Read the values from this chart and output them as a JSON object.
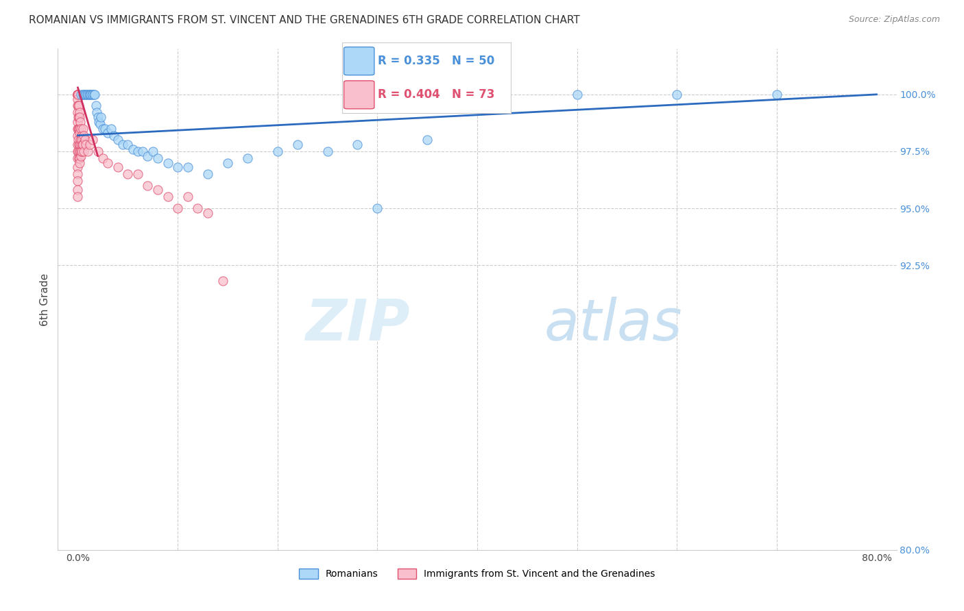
{
  "title": "ROMANIAN VS IMMIGRANTS FROM ST. VINCENT AND THE GRENADINES 6TH GRADE CORRELATION CHART",
  "source": "Source: ZipAtlas.com",
  "ylabel": "6th Grade",
  "xlim_data": [
    -2.0,
    82.0
  ],
  "ylim_data": [
    80.0,
    102.0
  ],
  "ytick_positions": [
    100.0,
    97.5,
    95.0,
    92.5,
    80.0
  ],
  "ytick_labels": [
    "100.0%",
    "97.5%",
    "95.0%",
    "92.5%",
    "80.0%"
  ],
  "xtick_positions": [
    0,
    10,
    20,
    30,
    40,
    50,
    60,
    70,
    80
  ],
  "xtick_labels": [
    "0.0%",
    "",
    "",
    "",
    "",
    "",
    "",
    "",
    "80.0%"
  ],
  "blue_fill": "#add8f7",
  "blue_edge": "#4a90d9",
  "pink_fill": "#f9bfcc",
  "pink_edge": "#e05070",
  "blue_line_color": "#2b6abf",
  "pink_line_color": "#d03060",
  "blue_x": [
    0.3,
    0.5,
    0.6,
    0.7,
    0.8,
    0.9,
    1.0,
    1.1,
    1.2,
    1.3,
    1.4,
    1.5,
    1.6,
    1.7,
    1.8,
    1.9,
    2.0,
    2.1,
    2.2,
    2.3,
    2.5,
    2.7,
    3.0,
    3.3,
    3.6,
    4.0,
    4.5,
    5.0,
    5.5,
    6.0,
    6.5,
    7.0,
    7.5,
    8.0,
    9.0,
    10.0,
    11.0,
    13.0,
    15.0,
    17.0,
    20.0,
    22.0,
    25.0,
    28.0,
    30.0,
    35.0,
    40.0,
    50.0,
    60.0,
    70.0
  ],
  "blue_y": [
    100.0,
    100.0,
    100.0,
    100.0,
    100.0,
    100.0,
    100.0,
    100.0,
    100.0,
    100.0,
    100.0,
    100.0,
    100.0,
    100.0,
    99.5,
    99.2,
    99.0,
    98.8,
    98.7,
    99.0,
    98.5,
    98.5,
    98.3,
    98.5,
    98.2,
    98.0,
    97.8,
    97.8,
    97.6,
    97.5,
    97.5,
    97.3,
    97.5,
    97.2,
    97.0,
    96.8,
    96.8,
    96.5,
    97.0,
    97.2,
    97.5,
    97.8,
    97.5,
    97.8,
    95.0,
    98.0,
    100.0,
    100.0,
    100.0,
    100.0
  ],
  "pink_x": [
    0.0,
    0.0,
    0.0,
    0.0,
    0.0,
    0.0,
    0.0,
    0.0,
    0.0,
    0.0,
    0.0,
    0.0,
    0.0,
    0.0,
    0.0,
    0.0,
    0.0,
    0.0,
    0.0,
    0.0,
    0.05,
    0.05,
    0.05,
    0.05,
    0.05,
    0.05,
    0.1,
    0.1,
    0.1,
    0.1,
    0.1,
    0.15,
    0.15,
    0.15,
    0.15,
    0.2,
    0.2,
    0.2,
    0.2,
    0.25,
    0.25,
    0.25,
    0.3,
    0.3,
    0.3,
    0.35,
    0.35,
    0.4,
    0.4,
    0.45,
    0.5,
    0.5,
    0.6,
    0.6,
    0.7,
    0.8,
    1.0,
    1.2,
    1.5,
    2.0,
    2.5,
    3.0,
    4.0,
    5.0,
    6.0,
    7.0,
    8.0,
    9.0,
    10.0,
    11.0,
    12.0,
    13.0,
    14.5
  ],
  "pink_y": [
    100.0,
    100.0,
    100.0,
    100.0,
    100.0,
    100.0,
    99.8,
    99.5,
    99.2,
    98.8,
    98.5,
    98.2,
    97.8,
    97.5,
    97.2,
    96.8,
    96.5,
    96.2,
    95.8,
    95.5,
    100.0,
    99.5,
    99.0,
    98.5,
    98.0,
    97.5,
    99.5,
    99.0,
    98.5,
    97.8,
    97.2,
    99.2,
    98.5,
    97.8,
    97.2,
    99.0,
    98.3,
    97.5,
    97.0,
    98.8,
    98.0,
    97.5,
    98.5,
    97.8,
    97.3,
    98.2,
    97.5,
    98.0,
    97.5,
    97.8,
    98.5,
    97.8,
    98.2,
    97.5,
    98.0,
    97.8,
    97.5,
    97.8,
    98.0,
    97.5,
    97.2,
    97.0,
    96.8,
    96.5,
    96.5,
    96.0,
    95.8,
    95.5,
    95.0,
    95.5,
    95.0,
    94.8,
    91.8
  ],
  "blue_trend_x": [
    0.0,
    80.0
  ],
  "blue_trend_y": [
    98.2,
    100.0
  ],
  "pink_trend_x": [
    0.0,
    2.0
  ],
  "pink_trend_y": [
    100.3,
    97.3
  ],
  "legend_label_blue": "Romanians",
  "legend_label_pink": "Immigrants from St. Vincent and the Grenadines",
  "watermark_zip": "ZIP",
  "watermark_atlas": "atlas",
  "grid_color": "#cccccc",
  "title_fontsize": 11,
  "axis_label_fontsize": 10,
  "right_tick_color": "#4a90d9"
}
